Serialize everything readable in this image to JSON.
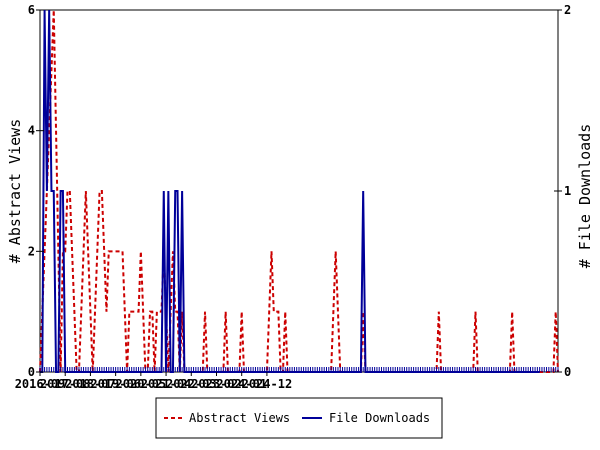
{
  "chart_data": {
    "type": "line",
    "x_tick_labels": [
      "2016-09",
      "2017-08",
      "2018-07",
      "2019-06",
      "2020-05",
      "2021-04",
      "2022-03",
      "2023-02",
      "2024-01",
      "2024-12"
    ],
    "left_axis": {
      "label": "# Abstract Views",
      "ylim": [
        0,
        6
      ],
      "ticks": [
        "0",
        "2",
        "4",
        "6"
      ]
    },
    "right_axis": {
      "label": "# File Downloads",
      "ylim": [
        0,
        2
      ],
      "ticks": [
        "0",
        "1",
        "2"
      ]
    },
    "grid": false,
    "legend_position": "bottom",
    "series": [
      {
        "name": "Abstract Views",
        "axis": "left",
        "color": "#cc0000",
        "style": "dashed",
        "values": [
          0,
          1,
          2,
          3,
          4,
          5,
          6,
          4,
          2,
          0,
          2,
          2,
          3,
          3,
          2,
          1,
          0,
          0,
          1,
          2,
          3,
          2,
          1,
          0,
          1,
          2,
          3,
          3,
          2,
          1,
          2,
          2,
          2,
          2,
          2,
          2,
          2,
          1,
          0,
          1,
          1,
          1,
          1,
          1,
          2,
          1,
          0,
          0,
          1,
          1,
          0,
          1,
          1,
          1,
          2,
          1,
          0,
          1,
          2,
          1,
          1,
          0,
          1,
          0,
          0,
          0,
          0,
          0,
          0,
          0,
          0,
          0,
          1,
          0,
          0,
          0,
          0,
          0,
          0,
          0,
          0,
          1,
          0,
          0,
          0,
          0,
          0,
          0,
          1,
          0,
          0,
          0,
          0,
          0,
          0,
          0,
          0,
          0,
          0,
          0,
          1,
          2,
          1,
          1,
          1,
          0,
          0,
          1,
          0,
          0,
          0,
          0,
          0,
          0,
          0,
          0,
          0,
          0,
          0,
          0,
          0,
          0,
          0,
          0,
          0,
          0,
          0,
          0,
          1,
          2,
          1,
          0,
          0,
          0,
          0,
          0,
          0,
          0,
          0,
          0,
          0,
          1,
          0,
          0,
          0,
          0,
          0,
          0,
          0,
          0,
          0,
          0,
          0,
          0,
          0,
          0,
          0,
          0,
          0,
          0,
          0,
          0,
          0,
          0,
          0,
          0,
          0,
          0,
          0,
          0,
          0,
          0,
          0,
          0,
          1,
          0,
          0,
          0,
          0,
          0,
          0,
          0,
          0,
          0,
          0,
          0,
          0,
          0,
          0,
          0,
          1,
          0,
          0,
          0,
          0,
          0,
          0,
          0,
          0,
          0,
          0,
          0,
          0,
          0,
          0,
          0,
          1,
          0,
          0,
          0,
          0,
          0,
          0,
          0,
          0,
          0,
          0,
          0,
          0,
          0,
          0,
          0,
          0,
          0,
          0,
          1,
          0
        ]
      },
      {
        "name": "File Downloads",
        "axis": "right",
        "color": "#000099",
        "style": "solid",
        "values": [
          0,
          0,
          2,
          1,
          2,
          1,
          1,
          0,
          0,
          1,
          1,
          0,
          0,
          0,
          0,
          0,
          0,
          0,
          0,
          0,
          0,
          0,
          0,
          0,
          0,
          0,
          0,
          0,
          0,
          0,
          0,
          0,
          0,
          0,
          0,
          0,
          0,
          0,
          0,
          0,
          0,
          0,
          0,
          0,
          0,
          0,
          0,
          0,
          0,
          0,
          0,
          0,
          0,
          0,
          1,
          0,
          1,
          0,
          0,
          1,
          1,
          0,
          1,
          0,
          0,
          0,
          0,
          0,
          0,
          0,
          0,
          0,
          0,
          0,
          0,
          0,
          0,
          0,
          0,
          0,
          0,
          0,
          0,
          0,
          0,
          0,
          0,
          0,
          0,
          0,
          0,
          0,
          0,
          0,
          0,
          0,
          0,
          0,
          0,
          0,
          0,
          0,
          0,
          0,
          0,
          0,
          0,
          0,
          0,
          0,
          0,
          0,
          0,
          0,
          0,
          0,
          0,
          0,
          0,
          0,
          0,
          0,
          0,
          0,
          0,
          0,
          0,
          0,
          0,
          0,
          0,
          0,
          0,
          0,
          0,
          0,
          0,
          0,
          0,
          0,
          0,
          1,
          0,
          0,
          0,
          0,
          0,
          0,
          0,
          0,
          0,
          0,
          0,
          0,
          0,
          0,
          0,
          0,
          0,
          0,
          0,
          0,
          0,
          0,
          0,
          0,
          0,
          0,
          0,
          0,
          0,
          0,
          0,
          0,
          0,
          0,
          0,
          0,
          0,
          0,
          0,
          0,
          0,
          0,
          0,
          0,
          0,
          0,
          0,
          0,
          0,
          0,
          0,
          0,
          0,
          0,
          0,
          0,
          0,
          0,
          0,
          0,
          0,
          0,
          0,
          0,
          0,
          0,
          0,
          0,
          0,
          0,
          0,
          0,
          0,
          0,
          0,
          0,
          0
        ]
      }
    ]
  }
}
